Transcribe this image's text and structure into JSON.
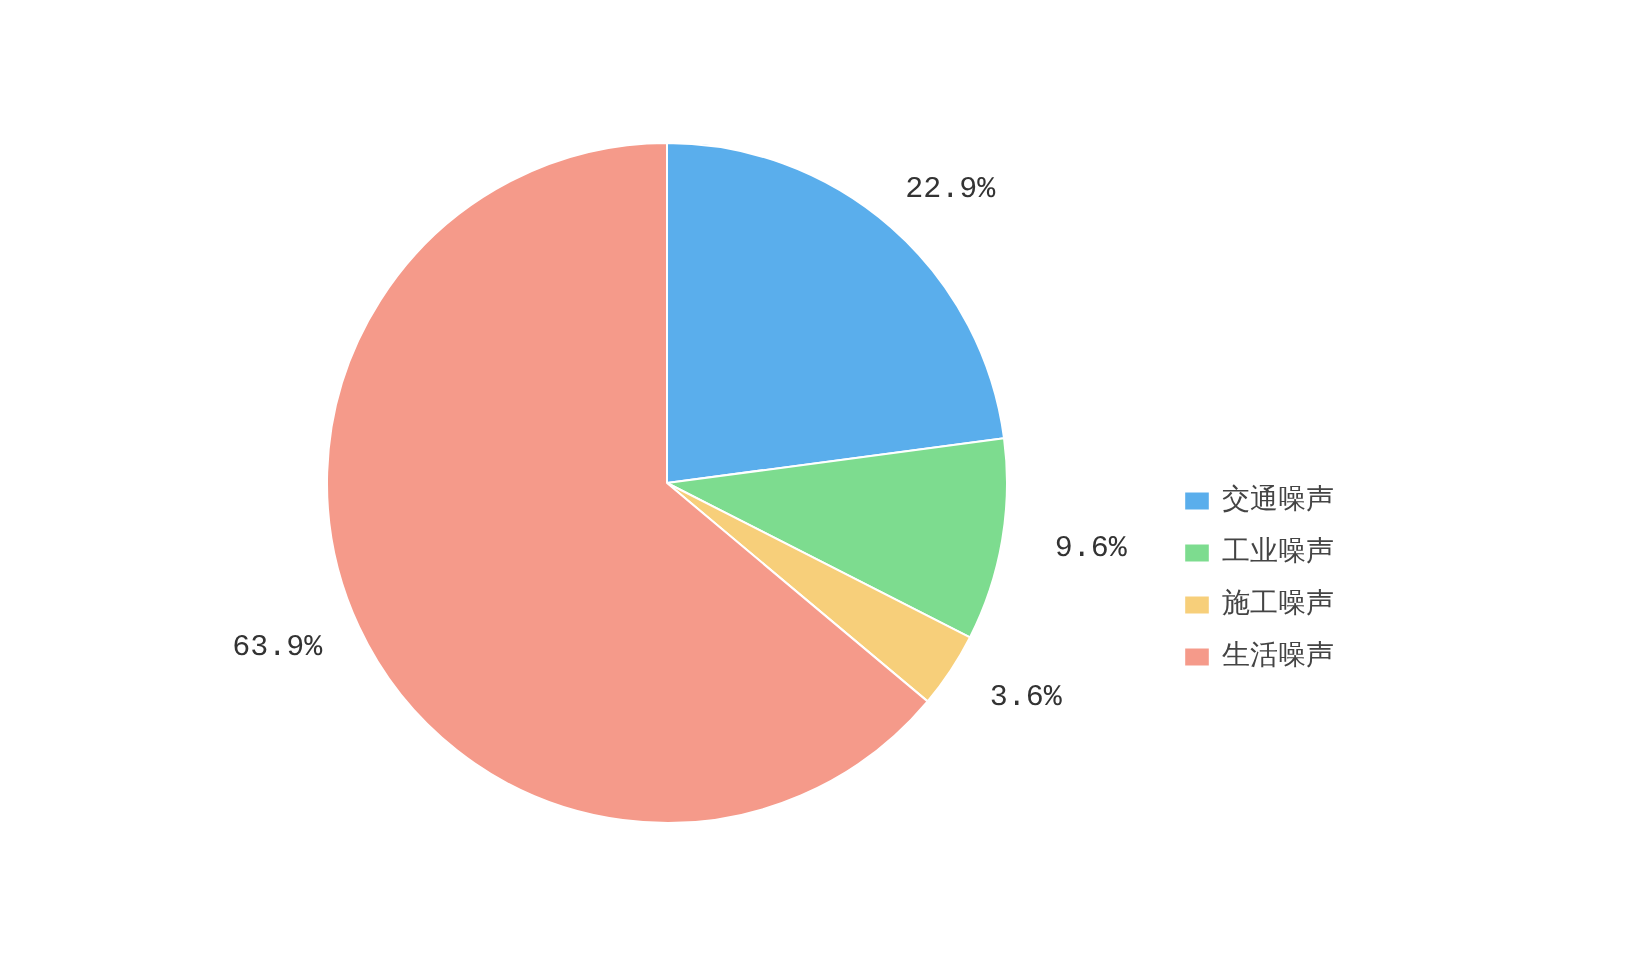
{
  "chart_data": {
    "type": "pie",
    "categories": [
      "交通噪声",
      "工业噪声",
      "施工噪声",
      "生活噪声"
    ],
    "values": [
      22.9,
      9.6,
      3.6,
      63.9
    ],
    "value_labels": [
      "22.9%",
      "9.6%",
      "3.6%",
      "63.9%"
    ],
    "colors": [
      "#5aaeec",
      "#7ddc8f",
      "#f7cf7a",
      "#f59a8a"
    ],
    "legend": "right"
  }
}
